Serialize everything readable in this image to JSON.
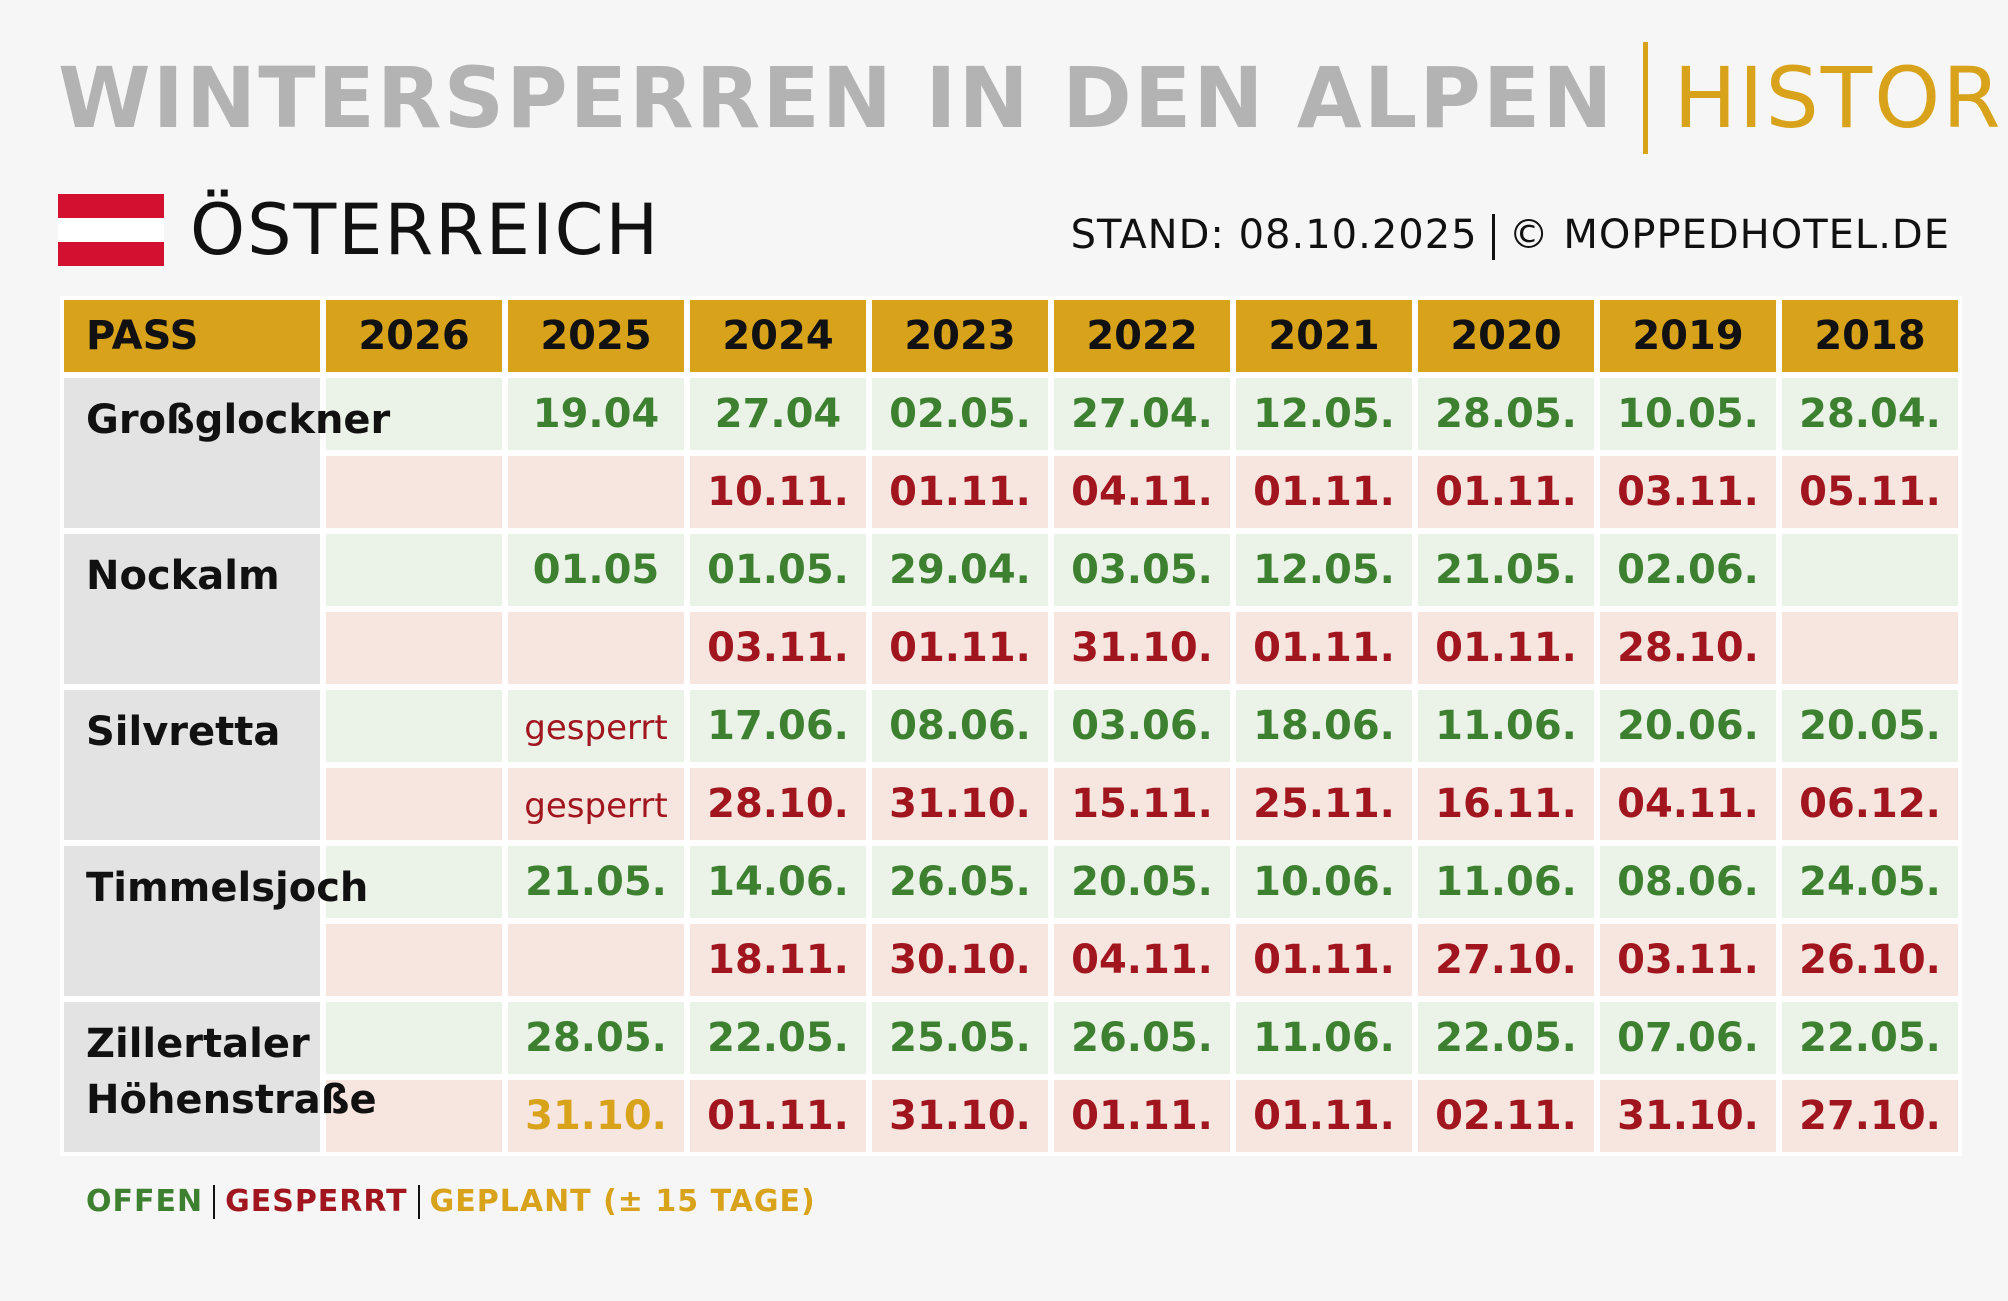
{
  "header": {
    "title_main": "WINTERSPERREN IN DEN ALPEN",
    "title_sub": "HISTORIE",
    "country": "ÖSTERREICH",
    "stand": "STAND: 08.10.2025",
    "copyright": "© MOPPEDHOTEL.DE"
  },
  "colors": {
    "accent": "#d9a21b",
    "open": "#3d8030",
    "closed": "#a1151f",
    "flag_red": "#d3102f"
  },
  "table": {
    "headers": [
      "PASS",
      "2026",
      "2025",
      "2024",
      "2023",
      "2022",
      "2021",
      "2020",
      "2019",
      "2018"
    ],
    "passes": [
      {
        "name": "Großglockner",
        "open": [
          "",
          "19.04",
          "27.04",
          "02.05.",
          "27.04.",
          "12.05.",
          "28.05.",
          "10.05.",
          "28.04."
        ],
        "close": [
          "",
          "",
          "10.11.",
          "01.11.",
          "04.11.",
          "01.11.",
          "01.11.",
          "03.11.",
          "05.11."
        ]
      },
      {
        "name": "Nockalm",
        "open": [
          "",
          "01.05",
          "01.05.",
          "29.04.",
          "03.05.",
          "12.05.",
          "21.05.",
          "02.06.",
          ""
        ],
        "close": [
          "",
          "",
          "03.11.",
          "01.11.",
          "31.10.",
          "01.11.",
          "01.11.",
          "28.10.",
          ""
        ]
      },
      {
        "name": "Silvretta",
        "open": [
          "",
          "gesperrt",
          "17.06.",
          "08.06.",
          "03.06.",
          "18.06.",
          "11.06.",
          "20.06.",
          "20.05."
        ],
        "close": [
          "",
          "gesperrt",
          "28.10.",
          "31.10.",
          "15.11.",
          "25.11.",
          "16.11.",
          "04.11.",
          "06.12."
        ]
      },
      {
        "name": "Timmelsjoch",
        "open": [
          "",
          "21.05.",
          "14.06.",
          "26.05.",
          "20.05.",
          "10.06.",
          "11.06.",
          "08.06.",
          "24.05."
        ],
        "close": [
          "",
          "",
          "18.11.",
          "30.10.",
          "04.11.",
          "01.11.",
          "27.10.",
          "03.11.",
          "26.10."
        ]
      },
      {
        "name": "Zillertaler Höhenstraße",
        "open": [
          "",
          "28.05.",
          "22.05.",
          "25.05.",
          "26.05.",
          "11.06.",
          "22.05.",
          "07.06.",
          "22.05."
        ],
        "close": [
          "",
          "31.10.",
          "01.11.",
          "31.10.",
          "01.11.",
          "01.11.",
          "02.11.",
          "31.10.",
          "27.10."
        ],
        "planned_close_index": 1
      }
    ]
  },
  "legend": {
    "open": "OFFEN",
    "closed": "GESPERRT",
    "planned": "GEPLANT (± 15 TAGE)"
  }
}
